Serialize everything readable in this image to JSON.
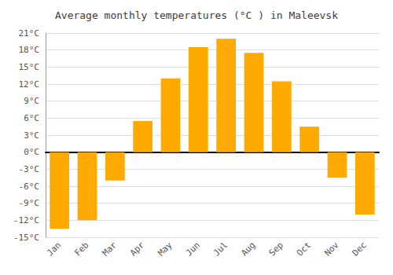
{
  "chart_data": {
    "type": "bar",
    "title": "Average monthly temperatures (°C ) in Maleevsk",
    "categories": [
      "Jan",
      "Feb",
      "Mar",
      "Apr",
      "May",
      "Jun",
      "Jul",
      "Aug",
      "Sep",
      "Oct",
      "Nov",
      "Dec"
    ],
    "values": [
      -13.5,
      -12.0,
      -5.0,
      5.5,
      13.0,
      18.5,
      20.0,
      17.5,
      12.5,
      4.5,
      -4.5,
      -11.0
    ],
    "color": "#FFAA00",
    "ylim": [
      -15,
      21
    ],
    "yticks": [
      {
        "value": -15,
        "label": "-15°C"
      },
      {
        "value": -12,
        "label": "-12°C"
      },
      {
        "value": -9,
        "label": "-9°C"
      },
      {
        "value": -6,
        "label": "-6°C"
      },
      {
        "value": -3,
        "label": "-3°C"
      },
      {
        "value": 0,
        "label": "0°C"
      },
      {
        "value": 3,
        "label": "3°C"
      },
      {
        "value": 6,
        "label": "6°C"
      },
      {
        "value": 9,
        "label": "9°C"
      },
      {
        "value": 12,
        "label": "12°C"
      },
      {
        "value": 15,
        "label": "15°C"
      },
      {
        "value": 18,
        "label": "18°C"
      },
      {
        "value": 21,
        "label": "21°C"
      }
    ],
    "grid": true
  }
}
